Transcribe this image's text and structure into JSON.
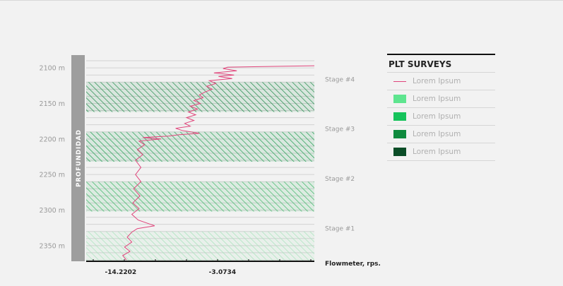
{
  "chart_data": {
    "type": "line",
    "title": "",
    "xlabel": "Flowmeter, rps.",
    "ylabel": "PROFUNDIDAD",
    "y_unit": "m",
    "ylim": [
      2082,
      2372
    ],
    "y_inverted": true,
    "yticks": [
      2100,
      2150,
      2200,
      2250,
      2300,
      2350
    ],
    "ytick_labels": [
      "2100 m",
      "2150 m",
      "2200 m",
      "2250 m",
      "2300 m",
      "2350 m"
    ],
    "xlim": [
      -18.0,
      7.0
    ],
    "xtick_labels": [
      {
        "value": -14.2202,
        "label": "-14.2202"
      },
      {
        "value": -3.0734,
        "label": "-3.0734"
      }
    ],
    "grid": true,
    "line_color": "#e0457b",
    "stages": [
      {
        "label": "Stage #4",
        "top": 2120,
        "bottom": 2162,
        "color": "#1f8a4a"
      },
      {
        "label": "Stage #3",
        "top": 2190,
        "bottom": 2232,
        "color": "#259f55"
      },
      {
        "label": "Stage #2",
        "top": 2260,
        "bottom": 2302,
        "color": "#3db668"
      },
      {
        "label": "Stage #1",
        "top": 2330,
        "bottom": 2372,
        "color": "#a6e3bb"
      }
    ],
    "series": [
      {
        "points": [
          [
            7.0,
            2097
          ],
          [
            -2.5,
            2099
          ],
          [
            -3.0,
            2101
          ],
          [
            -1.5,
            2104
          ],
          [
            -4.0,
            2107
          ],
          [
            -1.8,
            2110
          ],
          [
            -3.5,
            2112
          ],
          [
            -2.0,
            2115
          ],
          [
            -4.5,
            2118
          ],
          [
            -3.8,
            2122
          ],
          [
            -4.8,
            2126
          ],
          [
            -4.2,
            2130
          ],
          [
            -5.0,
            2134
          ],
          [
            -5.6,
            2138
          ],
          [
            -5.2,
            2142
          ],
          [
            -6.2,
            2146
          ],
          [
            -5.5,
            2150
          ],
          [
            -6.6,
            2154
          ],
          [
            -5.8,
            2158
          ],
          [
            -6.8,
            2162
          ],
          [
            -6.0,
            2166
          ],
          [
            -7.0,
            2170
          ],
          [
            -6.2,
            2174
          ],
          [
            -7.2,
            2178
          ],
          [
            -6.6,
            2182
          ],
          [
            -8.2,
            2185
          ],
          [
            -7.5,
            2188
          ],
          [
            -5.6,
            2192
          ],
          [
            -7.8,
            2194
          ],
          [
            -9.0,
            2196
          ],
          [
            -11.8,
            2198
          ],
          [
            -9.8,
            2200
          ],
          [
            -12.2,
            2203
          ],
          [
            -11.6,
            2208
          ],
          [
            -12.4,
            2215
          ],
          [
            -11.8,
            2222
          ],
          [
            -12.6,
            2230
          ],
          [
            -12.0,
            2240
          ],
          [
            -12.6,
            2250
          ],
          [
            -12.0,
            2260
          ],
          [
            -12.8,
            2270
          ],
          [
            -12.1,
            2280
          ],
          [
            -12.9,
            2290
          ],
          [
            -12.2,
            2298
          ],
          [
            -13.0,
            2306
          ],
          [
            -12.3,
            2314
          ],
          [
            -10.5,
            2322
          ],
          [
            -12.4,
            2326
          ],
          [
            -13.0,
            2331
          ],
          [
            -13.5,
            2338
          ],
          [
            -13.0,
            2345
          ],
          [
            -13.8,
            2352
          ],
          [
            -13.2,
            2358
          ],
          [
            -14.0,
            2364
          ],
          [
            -13.6,
            2370
          ]
        ]
      }
    ]
  },
  "legend": {
    "title": "PLT SURVEYS",
    "items": [
      {
        "label": "Lorem Ipsum",
        "type": "line",
        "color": "#e0457b"
      },
      {
        "label": "Lorem Ipsum",
        "type": "swatch",
        "color": "#5ee58f"
      },
      {
        "label": "Lorem Ipsum",
        "type": "swatch",
        "color": "#16c35b"
      },
      {
        "label": "Lorem Ipsum",
        "type": "swatch",
        "color": "#0f8a3e"
      },
      {
        "label": "Lorem Ipsum",
        "type": "swatch",
        "color": "#0b4d27"
      }
    ]
  }
}
